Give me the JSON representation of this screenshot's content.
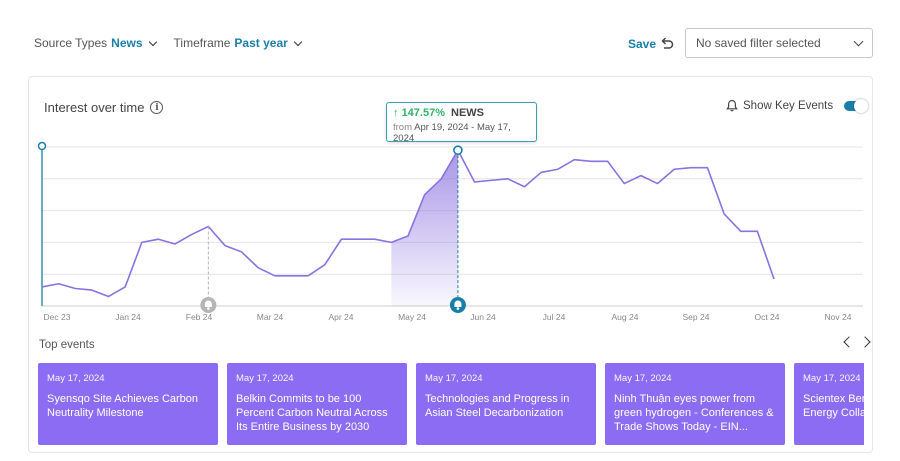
{
  "filters": {
    "source_label": "Source Types",
    "source_value": "News",
    "timeframe_label": "Timeframe",
    "timeframe_value": "Past year"
  },
  "toolbar": {
    "save_label": "Save",
    "saved_filter_placeholder": "No saved filter selected"
  },
  "chart_panel": {
    "title": "Interest over time",
    "show_key_events_label": "Show Key Events",
    "show_key_events_on": true
  },
  "tooltip": {
    "change": "147.57%",
    "source": "NEWS",
    "from_label": "from",
    "range": "Apr 19, 2024 - May 17, 2024"
  },
  "chart_data": {
    "type": "line",
    "x_tick_labels": [
      "Dec 23",
      "Jan 24",
      "Feb 24",
      "Mar 24",
      "Apr 24",
      "May 24",
      "Jun 24",
      "Jul 24",
      "Aug 24",
      "Sep 24",
      "Oct 24",
      "Nov 24"
    ],
    "series": [
      {
        "values": [
          0.12,
          0.14,
          0.11,
          0.1,
          0.06,
          0.12,
          0.4,
          0.42,
          0.39,
          0.45,
          0.5,
          0.38,
          0.34,
          0.24,
          0.19,
          0.19,
          0.19,
          0.26,
          0.42,
          0.42,
          0.42,
          0.4,
          0.44,
          0.7,
          0.8,
          0.98,
          0.78,
          0.79,
          0.8,
          0.75,
          0.84,
          0.86,
          0.92,
          0.91,
          0.91,
          0.77,
          0.82,
          0.77,
          0.86,
          0.87,
          0.87,
          0.58,
          0.47,
          0.47,
          0.17
        ]
      }
    ],
    "highlight_range_index": [
      21,
      25
    ],
    "key_events_index": [
      10,
      25
    ],
    "ylim": [
      0,
      1
    ],
    "grid": true,
    "legend": "none"
  },
  "events": {
    "label": "Top events",
    "items": [
      {
        "date": "May 17, 2024",
        "title": "Syensqo Site Achieves Carbon Neutrality Milestone"
      },
      {
        "date": "May 17, 2024",
        "title": "Belkin Commits to be 100 Percent Carbon Neutral Across Its Entire Business by 2030"
      },
      {
        "date": "May 17, 2024",
        "title": "Technologies and Progress in Asian Steel Decarbonization"
      },
      {
        "date": "May 17, 2024",
        "title": "Ninh Thuận eyes power from green hydrogen -  Conferences & Trade Shows Today - EIN..."
      },
      {
        "date": "May 17, 2024",
        "title": "Scientex Berhad Renewable Energy Collaboration"
      }
    ]
  },
  "colors": {
    "accent": "#1a7fa8",
    "line": "#8a72e0",
    "event_card": "#8b6cf2",
    "positive": "#2fb36b"
  },
  "icons": {
    "undo": "undo-icon",
    "info": "info-icon",
    "bell": "bell-icon"
  }
}
